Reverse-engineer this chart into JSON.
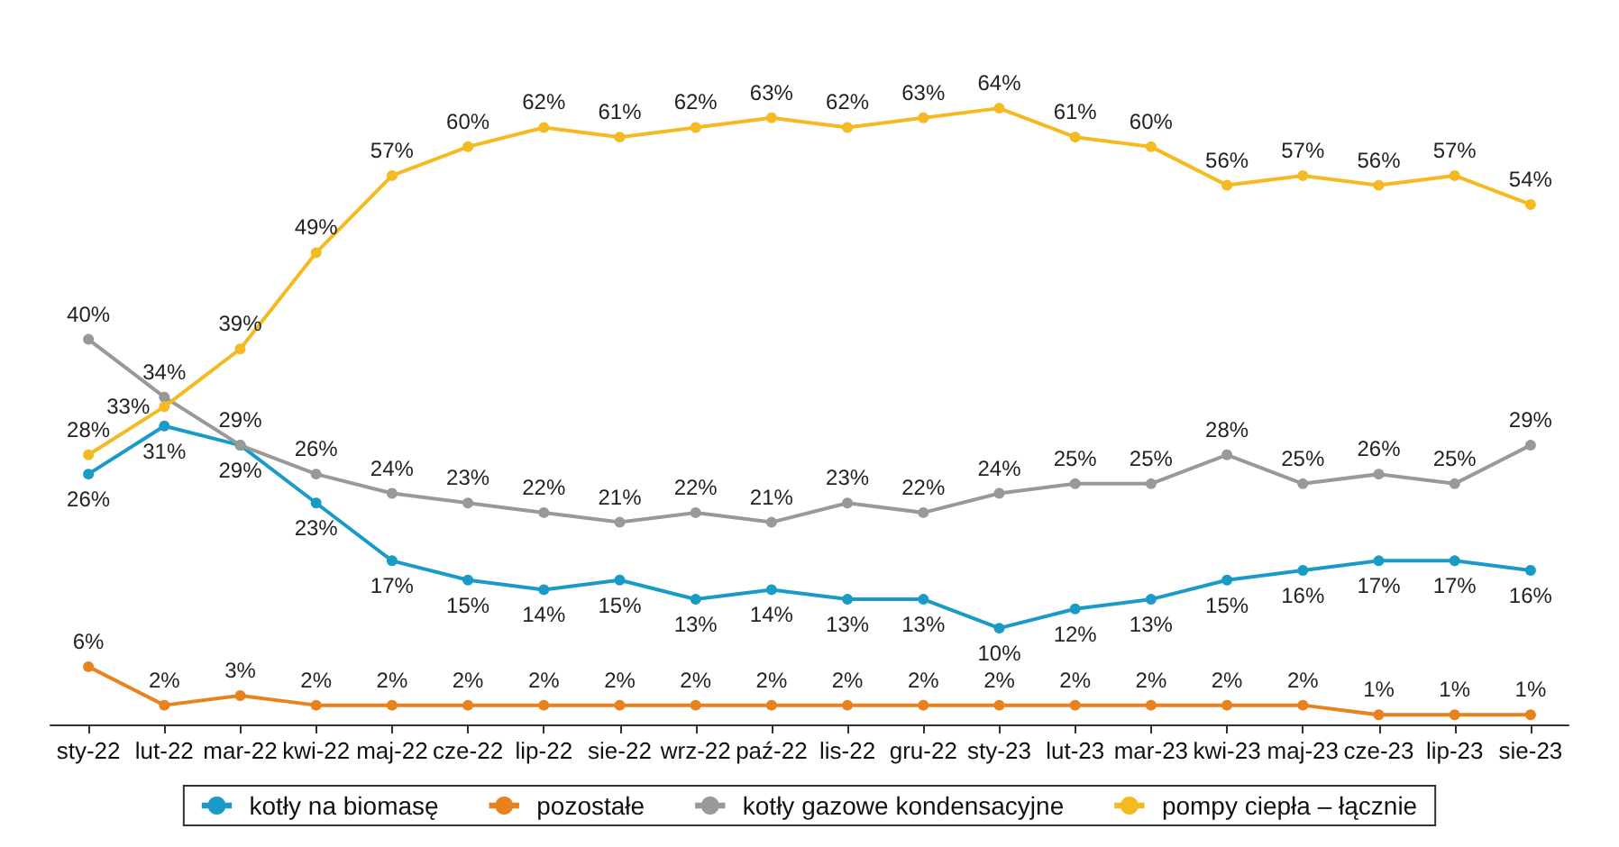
{
  "chart_data": {
    "type": "line",
    "categories": [
      "sty-22",
      "lut-22",
      "mar-22",
      "kwi-22",
      "maj-22",
      "cze-22",
      "lip-22",
      "sie-22",
      "wrz-22",
      "paź-22",
      "lis-22",
      "gru-22",
      "sty-23",
      "lut-23",
      "mar-23",
      "kwi-23",
      "maj-23",
      "cze-23",
      "lip-23",
      "sie-23"
    ],
    "series": [
      {
        "name": "kotły na biomasę",
        "color": "#1a9bc7",
        "values": [
          26,
          31,
          29,
          23,
          17,
          15,
          14,
          15,
          13,
          14,
          13,
          13,
          10,
          12,
          13,
          15,
          16,
          17,
          17,
          16
        ],
        "value_labels": [
          "26%",
          "31%",
          "29%",
          "23%",
          "17%",
          "15%",
          "14%",
          "15%",
          "13%",
          "14%",
          "13%",
          "13%",
          "10%",
          "12%",
          "13%",
          "15%",
          "16%",
          "17%",
          "17%",
          "16%"
        ]
      },
      {
        "name": "pozostałe",
        "color": "#e8821e",
        "values": [
          6,
          2,
          3,
          2,
          2,
          2,
          2,
          2,
          2,
          2,
          2,
          2,
          2,
          2,
          2,
          2,
          2,
          1,
          1,
          1
        ],
        "value_labels": [
          "6%",
          "2%",
          "3%",
          "2%",
          "2%",
          "2%",
          "2%",
          "2%",
          "2%",
          "2%",
          "2%",
          "2%",
          "2%",
          "2%",
          "2%",
          "2%",
          "2%",
          "1%",
          "1%",
          "1%"
        ]
      },
      {
        "name": "kotły gazowe kondensacyjne",
        "color": "#999999",
        "values": [
          40,
          34,
          29,
          26,
          24,
          23,
          22,
          21,
          22,
          21,
          23,
          22,
          24,
          25,
          25,
          28,
          25,
          26,
          25,
          29
        ],
        "value_labels": [
          "40%",
          "34%",
          "29%",
          "26%",
          "24%",
          "23%",
          "22%",
          "21%",
          "22%",
          "21%",
          "23%",
          "22%",
          "24%",
          "25%",
          "25%",
          "28%",
          "25%",
          "26%",
          "25%",
          "29%"
        ]
      },
      {
        "name": "pompy ciepła – łącznie",
        "color": "#f5b921",
        "values": [
          28,
          33,
          39,
          49,
          57,
          60,
          62,
          61,
          62,
          63,
          62,
          63,
          64,
          61,
          60,
          56,
          57,
          56,
          57,
          54
        ],
        "value_labels": [
          "28%",
          "33%",
          "39%",
          "49%",
          "57%",
          "60%",
          "62%",
          "61%",
          "62%",
          "63%",
          "62%",
          "63%",
          "64%",
          "61%",
          "60%",
          "56%",
          "57%",
          "56%",
          "57%",
          "54%"
        ]
      }
    ],
    "legend": "bottom",
    "grid": false,
    "marker": "circle",
    "line_style": "solid"
  }
}
